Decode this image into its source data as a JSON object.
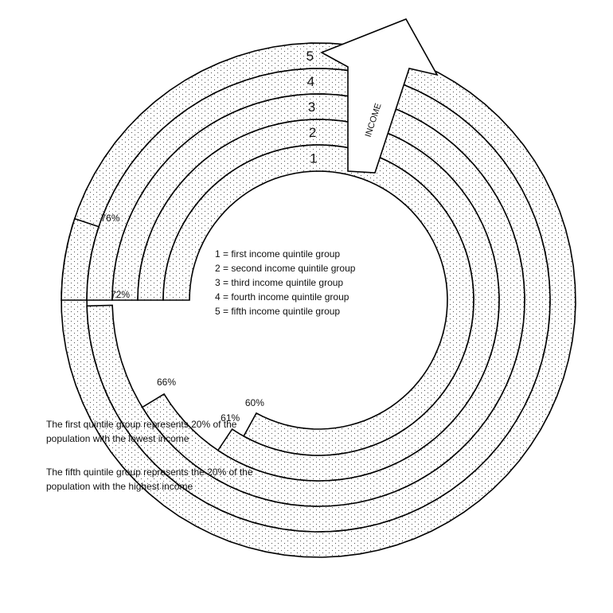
{
  "arrow_label": "INCOME",
  "rings": [
    {
      "number": "1",
      "value": 60,
      "value_label": "60%",
      "hatched": false
    },
    {
      "number": "2",
      "value": 61,
      "value_label": "61%",
      "hatched": false
    },
    {
      "number": "3",
      "value": 66,
      "value_label": "66%",
      "hatched": true
    },
    {
      "number": "4",
      "value": 72,
      "value_label": "72%",
      "hatched": true
    },
    {
      "number": "5",
      "value": 76,
      "value_label": "76%",
      "hatched": true
    }
  ],
  "legend": [
    "1 = first income quintile group",
    "2 = second income quintile group",
    "3 = third income quintile group",
    "4 = fourth income quintile group",
    "5 = fifth income quintile group"
  ],
  "notes": [
    [
      "The first quintile group represents 20% of the",
      "population with the lowest income"
    ],
    [
      "The fifth quintile group represents the 20% of the",
      "population with the highest income"
    ]
  ],
  "colors": {
    "line": "#000000",
    "dots": "#555555",
    "background": "#ffffff"
  }
}
